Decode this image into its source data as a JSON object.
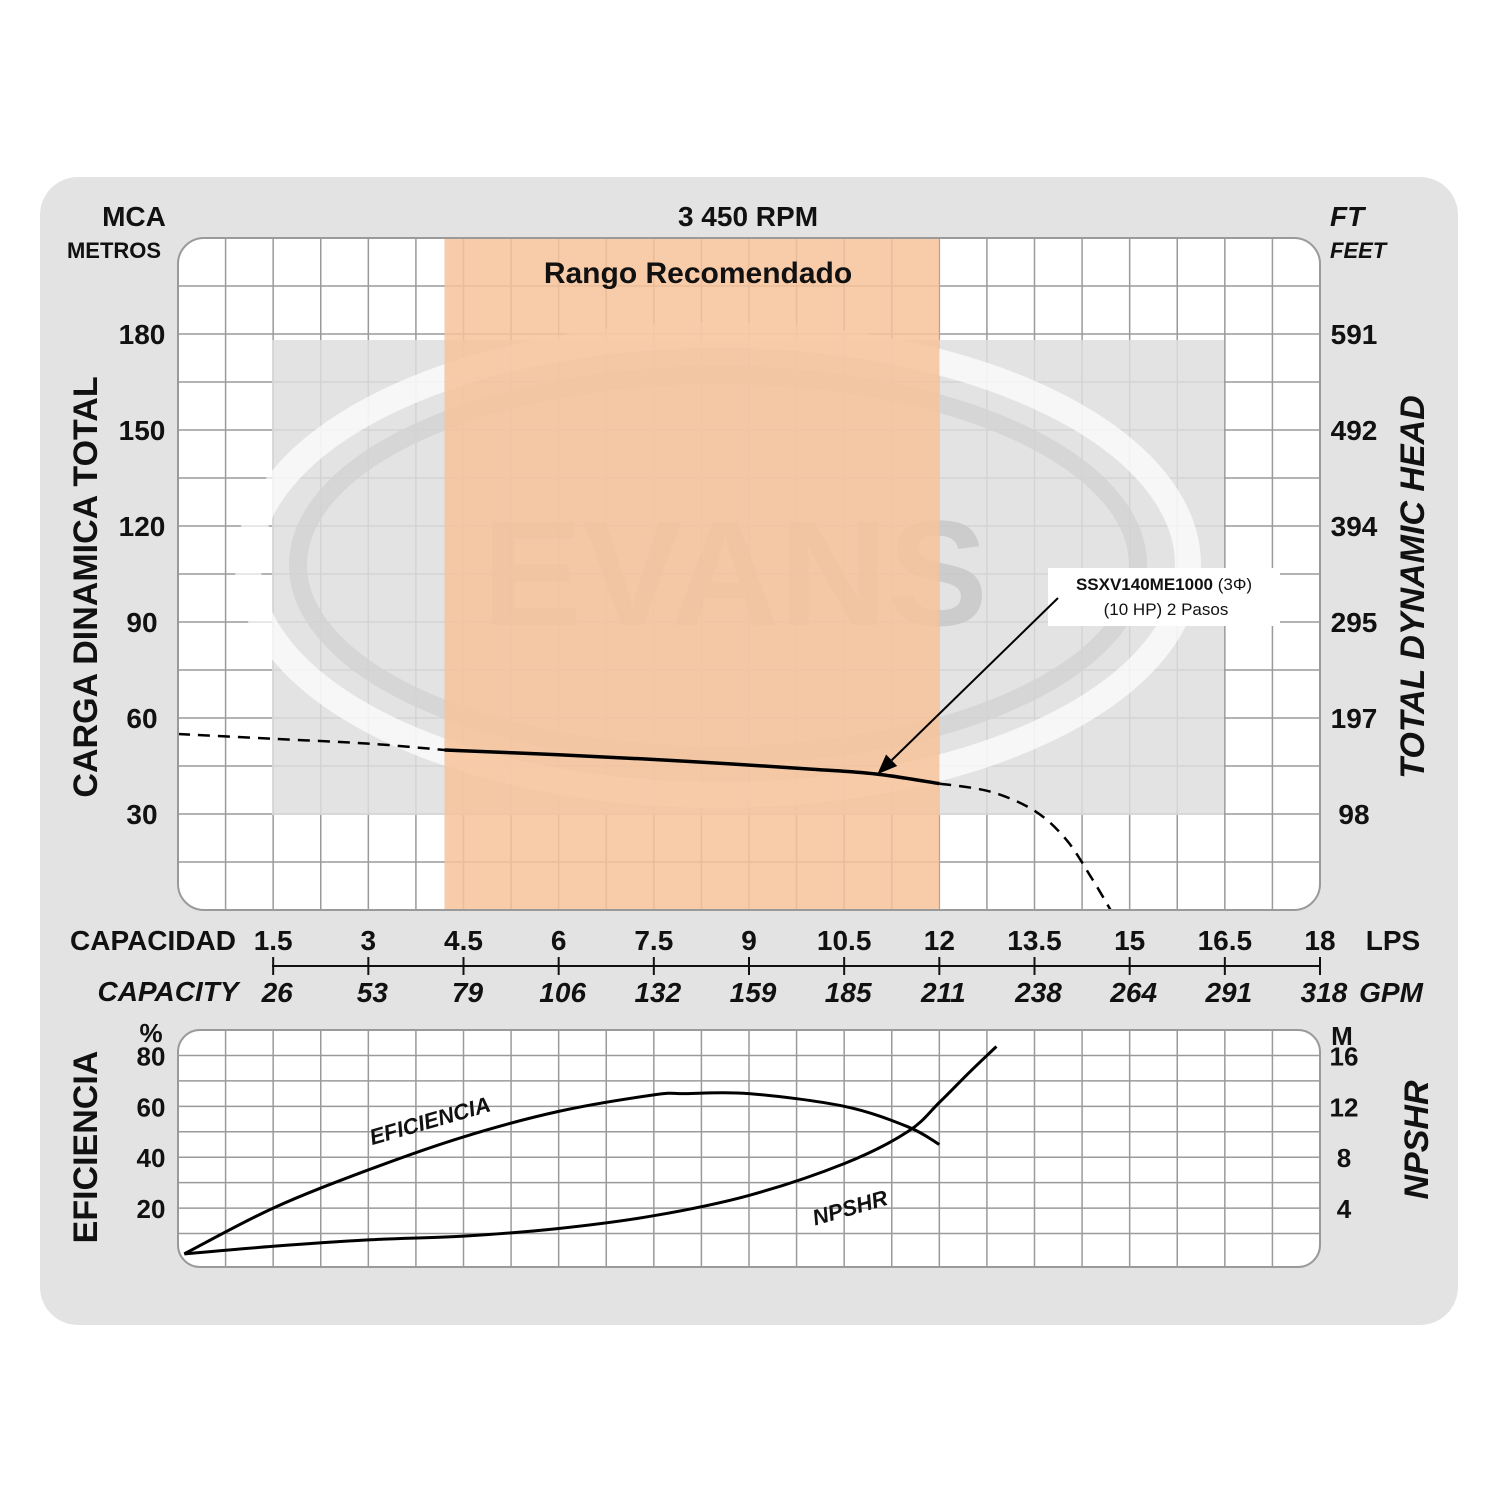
{
  "colors": {
    "panel": "#e3e3e3",
    "plot_bg": "#ffffff",
    "grid": "#9a9a9a",
    "recommended": "#f7c29a",
    "recommended_text": "#ffffff",
    "watermark": "#dedede",
    "curve": "#000000"
  },
  "header": {
    "left_unit": "MCA",
    "left_unit_sub": "METROS",
    "rpm": "3 450 RPM",
    "right_unit": "FT",
    "right_unit_sub": "FEET"
  },
  "watermark_text": "EVANS",
  "axes": {
    "left_title": "CARGA  DINAMICA  TOTAL",
    "right_title": "TOTAL  DYNAMIC  HEAD",
    "capacity_es": "CAPACIDAD",
    "capacity_en": "CAPACITY",
    "lps_unit": "LPS",
    "gpm_unit": "GPM",
    "eff_title": "EFICIENCIA",
    "eff_unit": "%",
    "npshr_title": "NPSHR",
    "npshr_unit": "M"
  },
  "chart_data": [
    {
      "type": "line",
      "title": "3 450 RPM",
      "xlabel": "CAPACIDAD / CAPACITY",
      "ylabel": "CARGA DINAMICA TOTAL",
      "y2label": "TOTAL DYNAMIC HEAD",
      "xlim": [
        0,
        18
      ],
      "ylim": [
        0,
        210
      ],
      "x_ticks_lps": [
        "1.5",
        "3",
        "4.5",
        "6",
        "7.5",
        "9",
        "10.5",
        "12",
        "13.5",
        "15",
        "16.5",
        "18"
      ],
      "x_ticks_gpm": [
        "26",
        "53",
        "79",
        "106",
        "132",
        "159",
        "185",
        "211",
        "238",
        "264",
        "291",
        "318"
      ],
      "y_ticks_left": [
        "30",
        "60",
        "90",
        "120",
        "150",
        "180"
      ],
      "y_ticks_right": [
        "98",
        "197",
        "295",
        "394",
        "492",
        "591"
      ],
      "recommended_range": {
        "label": "Rango Recomendado",
        "from": 4.2,
        "to": 12
      },
      "annotation": {
        "model": "SSXV140ME1000",
        "phase": "(3Φ)",
        "detail": "(10 HP) 2 Pasos",
        "x": 11,
        "y": 42
      },
      "series": [
        {
          "style": "solid",
          "x": [
            4.2,
            6,
            8,
            10,
            11,
            12
          ],
          "y": [
            50,
            48.5,
            46.5,
            44,
            42.5,
            39.5
          ]
        },
        {
          "style": "dashed",
          "x": [
            0,
            1.5,
            3,
            4.2
          ],
          "y": [
            55,
            53.5,
            52,
            50
          ]
        },
        {
          "style": "dashed",
          "x": [
            12,
            12.8,
            13.5,
            14,
            14.4,
            14.7
          ],
          "y": [
            39.5,
            37,
            31,
            22,
            10,
            0
          ]
        }
      ]
    },
    {
      "type": "line",
      "xlabel": "CAPACIDAD / CAPACITY",
      "ylabel": "EFICIENCIA",
      "y2label": "NPSHR",
      "xlim": [
        0,
        18
      ],
      "ylim": [
        0,
        90
      ],
      "y_ticks_left": [
        "20",
        "40",
        "60",
        "80"
      ],
      "y_ticks_right": [
        "4",
        "8",
        "12",
        "16"
      ],
      "series": [
        {
          "name": "EFICIENCIA",
          "x": [
            0.1,
            1.5,
            3,
            4.5,
            6,
            7.5,
            8,
            9,
            10.5,
            11.5,
            12
          ],
          "y": [
            2,
            20,
            35,
            48,
            58,
            64.5,
            65,
            65,
            60,
            52,
            45
          ]
        },
        {
          "name": "NPSHR",
          "x": [
            0.1,
            1.5,
            3,
            4.5,
            6,
            7.5,
            9,
            10.5,
            11.5,
            12,
            12.5,
            12.9
          ],
          "y": [
            0.4,
            1,
            1.5,
            1.8,
            2.4,
            3.4,
            5,
            7.5,
            10,
            12.3,
            14.8,
            16.7
          ]
        }
      ]
    }
  ]
}
